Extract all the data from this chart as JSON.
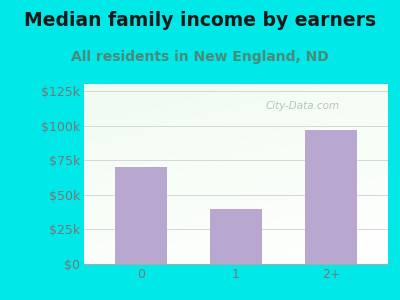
{
  "title": "Median family income by earners",
  "subtitle": "All residents in New England, ND",
  "categories": [
    "0",
    "1",
    "2+"
  ],
  "values": [
    70000,
    40000,
    97000
  ],
  "bar_color": "#b8a8d0",
  "background_color": "#00e8e8",
  "title_color": "#1a1a1a",
  "subtitle_color": "#4a8a7a",
  "axis_label_color": "#777777",
  "ytick_labels": [
    "$0",
    "$25k",
    "$50k",
    "$75k",
    "$100k",
    "$125k"
  ],
  "ytick_values": [
    0,
    25000,
    50000,
    75000,
    100000,
    125000
  ],
  "ylim": [
    0,
    130000
  ],
  "watermark": "City-Data.com",
  "title_fontsize": 13.5,
  "subtitle_fontsize": 10,
  "tick_fontsize": 9
}
